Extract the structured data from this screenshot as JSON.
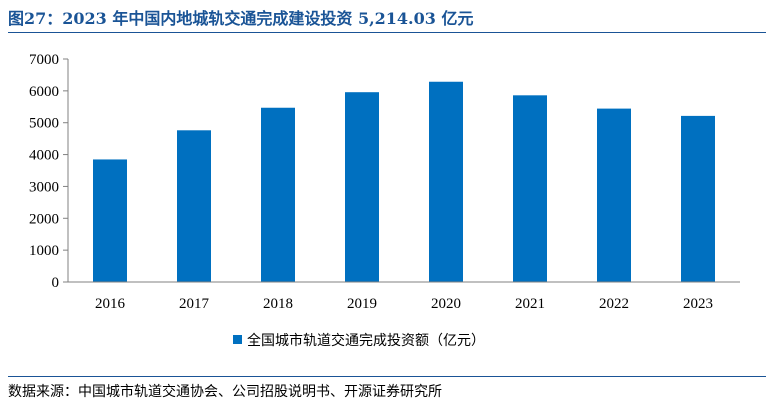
{
  "title": "图27：2023 年中国内地城轨交通完成建设投资 5,214.03 亿元",
  "source": "数据来源：中国城市轨道交通协会、公司招股说明书、开源证券研究所",
  "colors": {
    "bar": "#0070c0",
    "title": "#1a5496"
  },
  "chart_data": {
    "type": "bar",
    "categories": [
      "2016",
      "2017",
      "2018",
      "2019",
      "2020",
      "2021",
      "2022",
      "2023"
    ],
    "series": [
      {
        "name": "全国城市轨道交通完成投资额（亿元）",
        "values": [
          3847,
          4762,
          5470,
          5958,
          6286,
          5860,
          5443,
          5214.03
        ]
      }
    ],
    "ylim": [
      0,
      7000
    ],
    "yticks": [
      "0",
      "1000",
      "2000",
      "3000",
      "4000",
      "5000",
      "6000",
      "7000"
    ],
    "grid": false,
    "legend_position": "bottom"
  }
}
